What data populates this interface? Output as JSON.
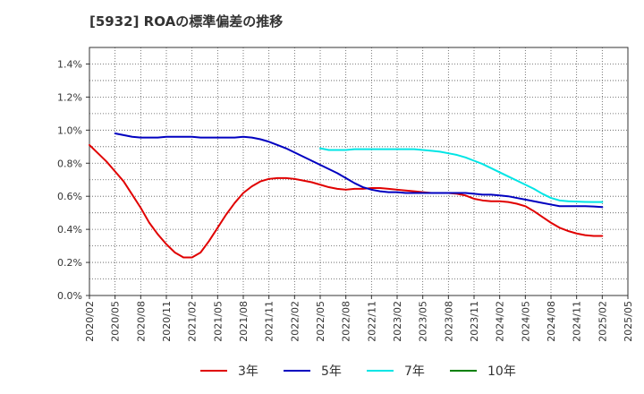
{
  "chart_data": {
    "type": "line",
    "title": "[5932]  ROAの標準偏差の推移",
    "xlabel": "",
    "ylabel": "",
    "x": [
      "2020/02",
      "2020/05",
      "2020/08",
      "2020/11",
      "2021/02",
      "2021/05",
      "2021/08",
      "2021/11",
      "2022/02",
      "2022/05",
      "2022/08",
      "2022/11",
      "2023/02",
      "2023/05",
      "2023/08",
      "2023/11",
      "2024/02",
      "2024/05",
      "2024/08",
      "2024/11",
      "2025/02",
      "2025/05"
    ],
    "ylim": [
      0,
      1.5
    ],
    "yticks": [
      "0.0%",
      "0.2%",
      "0.4%",
      "0.6%",
      "0.8%",
      "1.0%",
      "1.2%",
      "1.4%"
    ],
    "grid": true,
    "legend_position": "bottom",
    "series": [
      {
        "name": "3年",
        "color": "#e00000",
        "points": [
          [
            "2020/02",
            0.91
          ],
          [
            "2020/03",
            0.86
          ],
          [
            "2020/04",
            0.81
          ],
          [
            "2020/05",
            0.75
          ],
          [
            "2020/06",
            0.69
          ],
          [
            "2020/07",
            0.61
          ],
          [
            "2020/08",
            0.53
          ],
          [
            "2020/09",
            0.44
          ],
          [
            "2020/10",
            0.37
          ],
          [
            "2020/11",
            0.31
          ],
          [
            "2020/12",
            0.26
          ],
          [
            "2021/01",
            0.23
          ],
          [
            "2021/02",
            0.23
          ],
          [
            "2021/03",
            0.26
          ],
          [
            "2021/04",
            0.33
          ],
          [
            "2021/05",
            0.41
          ],
          [
            "2021/06",
            0.49
          ],
          [
            "2021/07",
            0.56
          ],
          [
            "2021/08",
            0.62
          ],
          [
            "2021/09",
            0.66
          ],
          [
            "2021/10",
            0.69
          ],
          [
            "2021/11",
            0.705
          ],
          [
            "2021/12",
            0.71
          ],
          [
            "2022/01",
            0.71
          ],
          [
            "2022/02",
            0.705
          ],
          [
            "2022/03",
            0.695
          ],
          [
            "2022/04",
            0.685
          ],
          [
            "2022/05",
            0.67
          ],
          [
            "2022/06",
            0.655
          ],
          [
            "2022/07",
            0.645
          ],
          [
            "2022/08",
            0.64
          ],
          [
            "2022/09",
            0.645
          ],
          [
            "2022/10",
            0.645
          ],
          [
            "2022/11",
            0.65
          ],
          [
            "2022/12",
            0.65
          ],
          [
            "2023/01",
            0.645
          ],
          [
            "2023/02",
            0.64
          ],
          [
            "2023/03",
            0.635
          ],
          [
            "2023/04",
            0.63
          ],
          [
            "2023/05",
            0.625
          ],
          [
            "2023/06",
            0.62
          ],
          [
            "2023/07",
            0.62
          ],
          [
            "2023/08",
            0.62
          ],
          [
            "2023/09",
            0.615
          ],
          [
            "2023/10",
            0.605
          ],
          [
            "2023/11",
            0.585
          ],
          [
            "2023/12",
            0.575
          ],
          [
            "2024/01",
            0.57
          ],
          [
            "2024/02",
            0.57
          ],
          [
            "2024/03",
            0.565
          ],
          [
            "2024/04",
            0.555
          ],
          [
            "2024/05",
            0.54
          ],
          [
            "2024/06",
            0.51
          ],
          [
            "2024/07",
            0.475
          ],
          [
            "2024/08",
            0.44
          ],
          [
            "2024/09",
            0.41
          ],
          [
            "2024/10",
            0.39
          ],
          [
            "2024/11",
            0.375
          ],
          [
            "2024/12",
            0.365
          ],
          [
            "2025/01",
            0.36
          ],
          [
            "2025/02",
            0.36
          ]
        ]
      },
      {
        "name": "5年",
        "color": "#0000c0",
        "points": [
          [
            "2020/05",
            0.98
          ],
          [
            "2020/06",
            0.97
          ],
          [
            "2020/07",
            0.96
          ],
          [
            "2020/08",
            0.955
          ],
          [
            "2020/09",
            0.955
          ],
          [
            "2020/10",
            0.955
          ],
          [
            "2020/11",
            0.96
          ],
          [
            "2020/12",
            0.96
          ],
          [
            "2021/01",
            0.96
          ],
          [
            "2021/02",
            0.96
          ],
          [
            "2021/03",
            0.955
          ],
          [
            "2021/04",
            0.955
          ],
          [
            "2021/05",
            0.955
          ],
          [
            "2021/06",
            0.955
          ],
          [
            "2021/07",
            0.955
          ],
          [
            "2021/08",
            0.96
          ],
          [
            "2021/09",
            0.955
          ],
          [
            "2021/10",
            0.945
          ],
          [
            "2021/11",
            0.93
          ],
          [
            "2021/12",
            0.91
          ],
          [
            "2022/01",
            0.89
          ],
          [
            "2022/02",
            0.865
          ],
          [
            "2022/03",
            0.84
          ],
          [
            "2022/04",
            0.815
          ],
          [
            "2022/05",
            0.79
          ],
          [
            "2022/06",
            0.765
          ],
          [
            "2022/07",
            0.74
          ],
          [
            "2022/08",
            0.71
          ],
          [
            "2022/09",
            0.68
          ],
          [
            "2022/10",
            0.655
          ],
          [
            "2022/11",
            0.64
          ],
          [
            "2022/12",
            0.63
          ],
          [
            "2023/01",
            0.625
          ],
          [
            "2023/02",
            0.625
          ],
          [
            "2023/03",
            0.62
          ],
          [
            "2023/04",
            0.62
          ],
          [
            "2023/05",
            0.62
          ],
          [
            "2023/06",
            0.62
          ],
          [
            "2023/07",
            0.62
          ],
          [
            "2023/08",
            0.62
          ],
          [
            "2023/09",
            0.62
          ],
          [
            "2023/10",
            0.62
          ],
          [
            "2023/11",
            0.615
          ],
          [
            "2023/12",
            0.61
          ],
          [
            "2024/01",
            0.61
          ],
          [
            "2024/02",
            0.605
          ],
          [
            "2024/03",
            0.6
          ],
          [
            "2024/04",
            0.59
          ],
          [
            "2024/05",
            0.58
          ],
          [
            "2024/06",
            0.57
          ],
          [
            "2024/07",
            0.56
          ],
          [
            "2024/08",
            0.55
          ],
          [
            "2024/09",
            0.54
          ],
          [
            "2024/10",
            0.54
          ],
          [
            "2024/11",
            0.54
          ],
          [
            "2024/12",
            0.54
          ],
          [
            "2025/01",
            0.538
          ],
          [
            "2025/02",
            0.535
          ]
        ]
      },
      {
        "name": "7年",
        "color": "#00e5e5",
        "points": [
          [
            "2022/05",
            0.89
          ],
          [
            "2022/06",
            0.88
          ],
          [
            "2022/07",
            0.88
          ],
          [
            "2022/08",
            0.88
          ],
          [
            "2022/09",
            0.885
          ],
          [
            "2022/10",
            0.885
          ],
          [
            "2022/11",
            0.885
          ],
          [
            "2022/12",
            0.885
          ],
          [
            "2023/01",
            0.885
          ],
          [
            "2023/02",
            0.885
          ],
          [
            "2023/03",
            0.885
          ],
          [
            "2023/04",
            0.885
          ],
          [
            "2023/05",
            0.88
          ],
          [
            "2023/06",
            0.875
          ],
          [
            "2023/07",
            0.87
          ],
          [
            "2023/08",
            0.86
          ],
          [
            "2023/09",
            0.85
          ],
          [
            "2023/10",
            0.835
          ],
          [
            "2023/11",
            0.815
          ],
          [
            "2023/12",
            0.795
          ],
          [
            "2024/01",
            0.77
          ],
          [
            "2024/02",
            0.745
          ],
          [
            "2024/03",
            0.72
          ],
          [
            "2024/04",
            0.695
          ],
          [
            "2024/05",
            0.67
          ],
          [
            "2024/06",
            0.645
          ],
          [
            "2024/07",
            0.615
          ],
          [
            "2024/08",
            0.59
          ],
          [
            "2024/09",
            0.575
          ],
          [
            "2024/10",
            0.57
          ],
          [
            "2024/11",
            0.568
          ],
          [
            "2024/12",
            0.566
          ],
          [
            "2025/01",
            0.565
          ],
          [
            "2025/02",
            0.565
          ]
        ]
      },
      {
        "name": "10年",
        "color": "#008000",
        "points": []
      }
    ]
  }
}
